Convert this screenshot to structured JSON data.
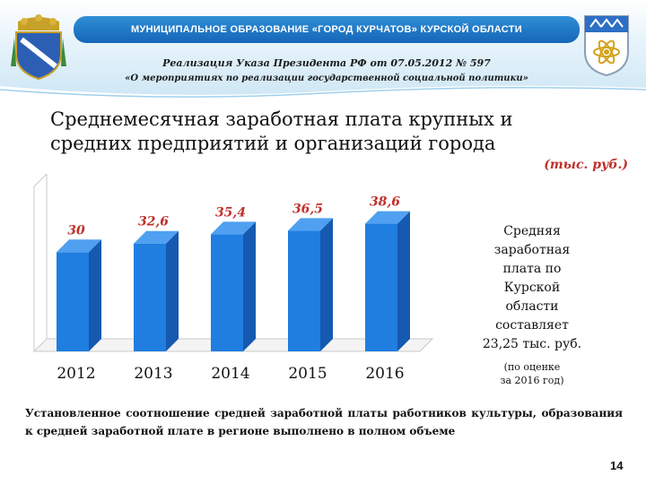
{
  "header": {
    "banner": "МУНИЦИПАЛЬНОЕ  ОБРАЗОВАНИЕ  «ГОРОД КУРЧАТОВ»  КУРСКОЙ  ОБЛАСТИ",
    "subtitle_line1": "Реализация Указа Президента РФ от 07.05.2012 № 597",
    "subtitle_line2": "«О мероприятиях по реализации государственной социальной политики»"
  },
  "slide": {
    "title_line1": "Среднемесячная заработная плата крупных и",
    "title_line2": "средних предприятий и организаций города",
    "unit": "(тыс. руб.)",
    "side_lines": [
      "Средняя",
      "заработная",
      "плата по",
      "Курской",
      "области",
      "составляет",
      "23,25 тыс. руб."
    ],
    "side_note_lines": [
      "(по оценке",
      "за 2016 год)"
    ],
    "footer": "Установленное соотношение средней заработной платы работников культуры, образования к средней заработной плате в регионе выполнено в полном объеме",
    "page_number": "14"
  },
  "colors": {
    "bar": "#1f7ee0",
    "bar_side": "#1559b0",
    "bar_top": "#4fa0f0",
    "label": "#c0302b",
    "banner": "#1a70c4"
  },
  "chart_data": {
    "type": "bar",
    "categories": [
      "2012",
      "2013",
      "2014",
      "2015",
      "2016"
    ],
    "values": [
      30,
      32.6,
      35.4,
      36.5,
      38.6
    ],
    "labels": [
      "30",
      "32,6",
      "35,4",
      "36,5",
      "38,6"
    ],
    "ylim": [
      0,
      40
    ],
    "grid": false,
    "legend": "none"
  }
}
